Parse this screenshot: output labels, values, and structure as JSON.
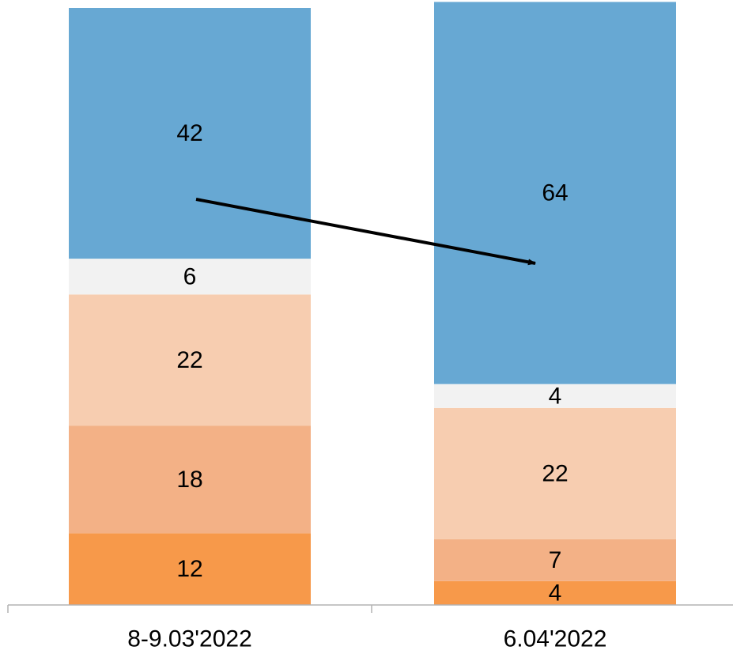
{
  "chart_data": {
    "type": "bar",
    "stacked": true,
    "title": "",
    "xlabel": "",
    "ylabel": "",
    "ylim": [
      0,
      100
    ],
    "grid": false,
    "categories": [
      "8-9.03'2022",
      "6.04'2022"
    ],
    "series": [
      {
        "color": "#f7994a",
        "values": [
          12,
          4
        ]
      },
      {
        "color": "#f3b186",
        "values": [
          18,
          7
        ]
      },
      {
        "color": "#f7cdb0",
        "values": [
          22,
          22
        ]
      },
      {
        "color": "#f2f2f2",
        "values": [
          6,
          4
        ]
      },
      {
        "color": "#67a8d3",
        "values": [
          42,
          64
        ]
      }
    ],
    "annotations": [
      {
        "type": "arrow",
        "color": "#000000",
        "from_category": 0,
        "to_category": 1
      }
    ]
  }
}
